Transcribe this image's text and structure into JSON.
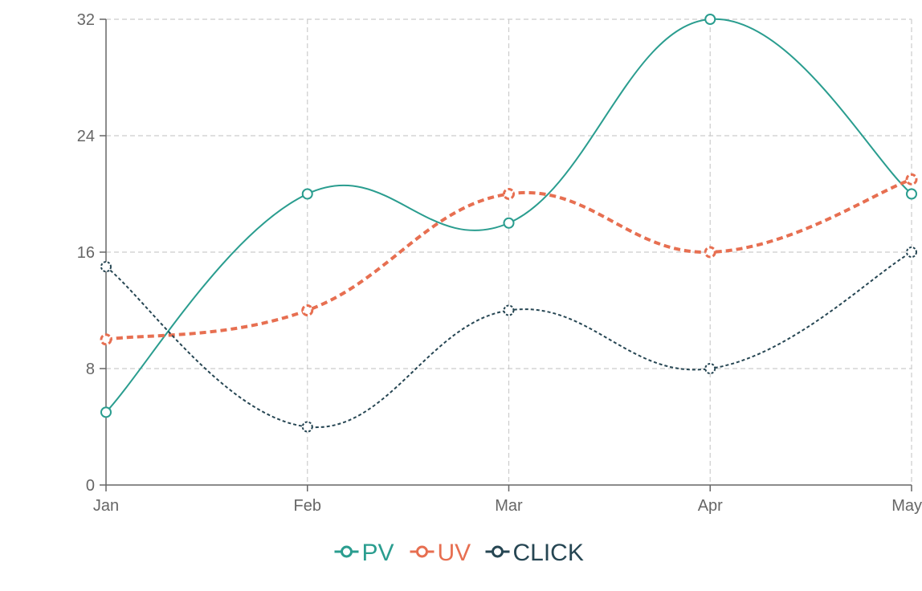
{
  "chart_data": {
    "type": "line",
    "categories": [
      "Jan",
      "Feb",
      "Mar",
      "Apr",
      "May"
    ],
    "series": [
      {
        "name": "PV",
        "values": [
          5,
          20,
          18,
          32,
          20
        ],
        "color": "#2a9d8f",
        "style": "solid"
      },
      {
        "name": "UV",
        "values": [
          10,
          12,
          20,
          16,
          21
        ],
        "color": "#e76f51",
        "style": "dashed"
      },
      {
        "name": "CLICK",
        "values": [
          15,
          4,
          12,
          8,
          16
        ],
        "color": "#264653",
        "style": "dotted"
      }
    ],
    "ylim": [
      0,
      32
    ],
    "yticks": [
      "0",
      "8",
      "16",
      "24",
      "32"
    ],
    "grid": true,
    "curve": "smooth",
    "legend_position": "bottom-center"
  }
}
